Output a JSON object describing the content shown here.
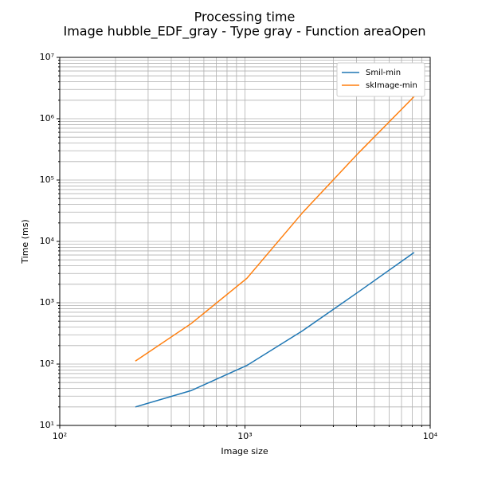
{
  "chart_data": {
    "type": "line",
    "title": "Processing time",
    "subtitle": "Image hubble_EDF_gray - Type gray - Function areaOpen",
    "x_label": "Image size",
    "y_label": "Time (ms)",
    "x": [
      256,
      512,
      1024,
      2048,
      4096,
      8192
    ],
    "series": [
      {
        "name": "Smil-min",
        "color": "#1f77b4",
        "values": [
          20,
          37,
          95,
          350,
          1500,
          6600
        ]
      },
      {
        "name": "skImage-min",
        "color": "#ff7f0e",
        "values": [
          112,
          457,
          2500,
          29500,
          275000,
          2300000
        ]
      }
    ],
    "xlog": true,
    "ylog": true,
    "grid": true,
    "legend": "upper right",
    "xlim": [
      100,
      10000
    ],
    "ylim": [
      10,
      10000000
    ],
    "xticks": [
      {
        "value": 100,
        "label": "10²"
      },
      {
        "value": 1000,
        "label": "10³"
      },
      {
        "value": 10000,
        "label": "10⁴"
      }
    ],
    "yticks": [
      {
        "value": 10,
        "label": "10¹"
      },
      {
        "value": 100,
        "label": "10²"
      },
      {
        "value": 1000,
        "label": "10³"
      },
      {
        "value": 10000,
        "label": "10⁴"
      },
      {
        "value": 100000,
        "label": "10⁵"
      },
      {
        "value": 1000000,
        "label": "10⁶"
      },
      {
        "value": 10000000,
        "label": "10⁷"
      }
    ],
    "xminorticks": [
      200,
      300,
      400,
      500,
      600,
      700,
      800,
      900,
      2000,
      3000,
      4000,
      5000,
      6000,
      7000,
      8000,
      9000
    ],
    "yminorticks": [
      20,
      30,
      40,
      50,
      60,
      70,
      80,
      90,
      200,
      300,
      400,
      500,
      600,
      700,
      800,
      900,
      2000,
      3000,
      4000,
      5000,
      6000,
      7000,
      8000,
      9000,
      20000,
      30000,
      40000,
      50000,
      60000,
      70000,
      80000,
      90000,
      200000,
      300000,
      400000,
      500000,
      600000,
      700000,
      800000,
      900000,
      2000000,
      3000000,
      4000000,
      5000000,
      6000000,
      7000000,
      8000000,
      9000000
    ]
  }
}
